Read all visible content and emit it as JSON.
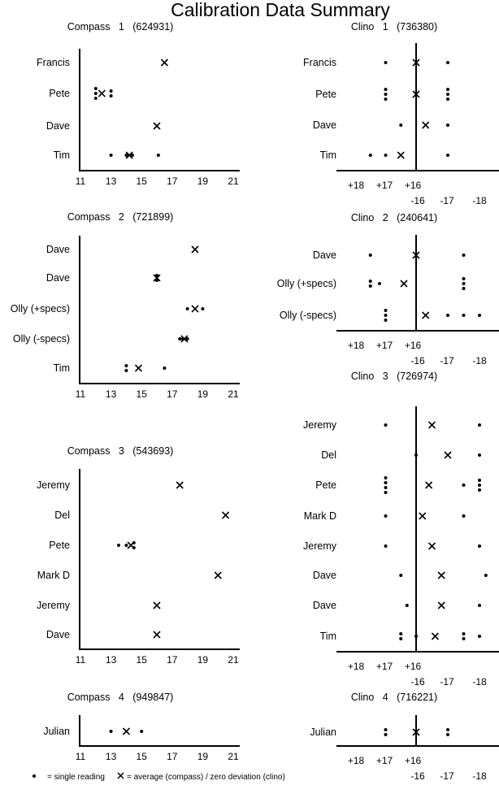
{
  "title": "Calibration Data Summary",
  "legend": {
    "dot_icon": "single-reading-dot",
    "dot_label": "= single reading",
    "x_icon": "average-cross",
    "x_label": "= average (compass) / zero deviation (clino)"
  },
  "colors": {
    "ink": "#000000",
    "background": "#ffffff"
  },
  "chart_data": [
    {
      "type": "scatter",
      "kind": "compass",
      "title": "Compass   1   (624931)",
      "xlim": [
        11,
        21
      ],
      "x_ticks": [
        "11",
        "13",
        "15",
        "17",
        "19",
        "21"
      ],
      "rows": [
        {
          "label": "Francis",
          "readings": [],
          "marker_x": 16.5
        },
        {
          "label": "Pete",
          "readings": [
            {
              "x": 12.0,
              "count": 3
            },
            {
              "x": 13.0,
              "count": 2
            }
          ],
          "marker_x": 12.4
        },
        {
          "label": "Dave",
          "readings": [],
          "marker_x": 16.0
        },
        {
          "label": "Tim",
          "readings": [
            {
              "x": 13.0,
              "count": 1
            },
            {
              "x": 14.0,
              "count": 1
            },
            {
              "x": 14.4,
              "count": 1
            },
            {
              "x": 16.1,
              "count": 1
            }
          ],
          "marker_x": 14.2
        }
      ]
    },
    {
      "type": "scatter",
      "kind": "clino",
      "title": "Clino   1   (736380)",
      "x_ticks_positive": [
        "+18",
        "+17",
        "+16"
      ],
      "x_ticks_negative": [
        "-16",
        "-17",
        "-18"
      ],
      "rows": [
        {
          "label": "Francis",
          "readings": [
            {
              "x": 17.0,
              "count": 1
            },
            {
              "x": -17.0,
              "count": 1
            }
          ],
          "marker_x": 16
        },
        {
          "label": "Pete",
          "readings": [
            {
              "x": 17.0,
              "count": 3
            },
            {
              "x": -17.0,
              "count": 3
            }
          ],
          "marker_x": 16
        },
        {
          "label": "Dave",
          "readings": [
            {
              "x": 16.5,
              "count": 1
            },
            {
              "x": -17.0,
              "count": 1
            }
          ],
          "marker_x": -16.3
        },
        {
          "label": "Tim",
          "readings": [
            {
              "x": 17.5,
              "count": 1
            },
            {
              "x": 17.0,
              "count": 1
            },
            {
              "x": -17.0,
              "count": 1
            }
          ],
          "marker_x": 16.5
        }
      ]
    },
    {
      "type": "scatter",
      "kind": "compass",
      "title": "Compass   2   (721899)",
      "xlim": [
        11,
        21
      ],
      "x_ticks": [
        "11",
        "13",
        "15",
        "17",
        "19",
        "21"
      ],
      "rows": [
        {
          "label": "Dave",
          "readings": [],
          "marker_x": 18.5
        },
        {
          "label": "Dave",
          "readings": [
            {
              "x": 16.0,
              "count": 2
            }
          ],
          "marker_x": 16.0
        },
        {
          "label": "Olly (+specs)",
          "readings": [
            {
              "x": 18.0,
              "count": 1
            },
            {
              "x": 19.0,
              "count": 1
            }
          ],
          "marker_x": 18.5
        },
        {
          "label": "Olly (-specs)",
          "readings": [
            {
              "x": 17.5,
              "count": 1
            },
            {
              "x": 17.7,
              "count": 1
            },
            {
              "x": 18.0,
              "count": 1
            }
          ],
          "marker_x": 17.8
        },
        {
          "label": "Tim",
          "readings": [
            {
              "x": 14.0,
              "count": 2
            },
            {
              "x": 16.5,
              "count": 1
            }
          ],
          "marker_x": 14.8
        }
      ]
    },
    {
      "type": "scatter",
      "kind": "clino",
      "title": "Clino   2   (240641)",
      "x_ticks_positive": [
        "+18",
        "+17",
        "+16"
      ],
      "x_ticks_negative": [
        "-16",
        "-17",
        "-18"
      ],
      "rows": [
        {
          "label": "Dave",
          "readings": [
            {
              "x": 17.5,
              "count": 1
            },
            {
              "x": -17.5,
              "count": 1
            }
          ],
          "marker_x": 16
        },
        {
          "label": "Olly (+specs)",
          "readings": [
            {
              "x": 17.5,
              "count": 2
            },
            {
              "x": 17.2,
              "count": 1
            },
            {
              "x": -17.5,
              "count": 3
            }
          ],
          "marker_x": 16.4
        },
        {
          "label": "Olly (-specs)",
          "readings": [
            {
              "x": 17.0,
              "count": 3
            },
            {
              "x": -17.0,
              "count": 1
            },
            {
              "x": -17.5,
              "count": 1
            },
            {
              "x": -18.0,
              "count": 1
            }
          ],
          "marker_x": -16.3
        }
      ]
    },
    {
      "type": "scatter",
      "kind": "compass",
      "title": "Compass   3   (543693)",
      "xlim": [
        11,
        21
      ],
      "x_ticks": [
        "11",
        "13",
        "15",
        "17",
        "19",
        "21"
      ],
      "rows": [
        {
          "label": "Jeremy",
          "readings": [],
          "marker_x": 17.5
        },
        {
          "label": "Del",
          "readings": [],
          "marker_x": 20.5
        },
        {
          "label": "Pete",
          "readings": [
            {
              "x": 13.5,
              "count": 1
            },
            {
              "x": 14.0,
              "count": 1
            },
            {
              "x": 14.5,
              "count": 2
            }
          ],
          "marker_x": 14.3
        },
        {
          "label": "Mark D",
          "readings": [],
          "marker_x": 20.0
        },
        {
          "label": "Jeremy",
          "readings": [],
          "marker_x": 16.0
        },
        {
          "label": "Dave",
          "readings": [],
          "marker_x": 16.0
        }
      ]
    },
    {
      "type": "scatter",
      "kind": "clino",
      "title": "Clino   3   (726974)",
      "x_ticks_positive": [
        "+18",
        "+17",
        "+16"
      ],
      "x_ticks_negative": [
        "-16",
        "-17",
        "-18"
      ],
      "rows": [
        {
          "label": "Jeremy",
          "readings": [
            {
              "x": 17.0,
              "count": 1
            },
            {
              "x": -18.0,
              "count": 1
            }
          ],
          "marker_x": -16.5
        },
        {
          "label": "Del",
          "readings": [
            {
              "x": 16.0,
              "count": 1
            },
            {
              "x": -18.0,
              "count": 1
            }
          ],
          "marker_x": -17.0
        },
        {
          "label": "Pete",
          "readings": [
            {
              "x": 17.0,
              "count": 4
            },
            {
              "x": -17.5,
              "count": 1
            },
            {
              "x": -18.0,
              "count": 3
            }
          ],
          "marker_x": -16.4
        },
        {
          "label": "Mark D",
          "readings": [
            {
              "x": 17.0,
              "count": 1
            },
            {
              "x": -17.5,
              "count": 1
            }
          ],
          "marker_x": -16.2
        },
        {
          "label": "Jeremy",
          "readings": [
            {
              "x": 17.0,
              "count": 1
            },
            {
              "x": -18.0,
              "count": 1
            }
          ],
          "marker_x": -16.5
        },
        {
          "label": "Dave",
          "readings": [
            {
              "x": 16.5,
              "count": 1
            },
            {
              "x": -18.2,
              "count": 1
            }
          ],
          "marker_x": -16.8
        },
        {
          "label": "Dave",
          "readings": [
            {
              "x": 16.3,
              "count": 1
            },
            {
              "x": -18.0,
              "count": 1
            }
          ],
          "marker_x": -16.8
        },
        {
          "label": "Tim",
          "readings": [
            {
              "x": 16.5,
              "count": 2
            },
            {
              "x": 16.0,
              "count": 1
            },
            {
              "x": -17.5,
              "count": 2
            },
            {
              "x": -18.0,
              "count": 1
            }
          ],
          "marker_x": -16.6
        }
      ]
    },
    {
      "type": "scatter",
      "kind": "compass",
      "title": "Compass   4   (949847)",
      "xlim": [
        11,
        21
      ],
      "x_ticks": [
        "11",
        "13",
        "15",
        "17",
        "19",
        "21"
      ],
      "rows": [
        {
          "label": "Julian",
          "readings": [
            {
              "x": 13.0,
              "count": 1
            },
            {
              "x": 15.0,
              "count": 1
            }
          ],
          "marker_x": 14.0
        }
      ]
    },
    {
      "type": "scatter",
      "kind": "clino",
      "title": "Clino   4   (716221)",
      "x_ticks_positive": [
        "+18",
        "+17",
        "+16"
      ],
      "x_ticks_negative": [
        "-16",
        "-17",
        "-18"
      ],
      "rows": [
        {
          "label": "Julian",
          "readings": [
            {
              "x": 17.0,
              "count": 2
            },
            {
              "x": -17.0,
              "count": 2
            }
          ],
          "marker_x": 16
        }
      ]
    }
  ]
}
